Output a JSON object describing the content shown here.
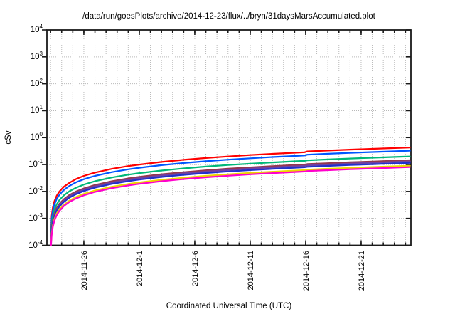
{
  "chart_data": {
    "type": "line",
    "title": "/data/run/goesPlots/archive/2014-12-23/flux/../bryn/31daysMarsAccumulated.plot",
    "xlabel": "Coordinated Universal Time (UTC)",
    "ylabel": "cSv",
    "y_scale": "log",
    "y_exp_range": [
      -4,
      4
    ],
    "y_tick_base": "10",
    "y_tick_exponents": [
      4,
      3,
      2,
      1,
      0,
      -1,
      -2,
      -3,
      -4
    ],
    "x_axis": {
      "day_zero_date": "2014-11-23",
      "range_days": [
        -0.33,
        32.49
      ],
      "minor_tick_step_days": 1,
      "major_ticks": [
        {
          "label": "2014-11-26",
          "day": 3
        },
        {
          "label": "2014-12-1",
          "day": 8
        },
        {
          "label": "2014-12-6",
          "day": 13
        },
        {
          "label": "2014-12-11",
          "day": 18
        },
        {
          "label": "2014-12-16",
          "day": 23
        },
        {
          "label": "2014-12-21",
          "day": 28
        }
      ]
    },
    "grid": {
      "vertical": "daily",
      "horizontal": "decades",
      "style": "dotted",
      "color": "#b9b9b9"
    },
    "style": {
      "axis_color": "#1a1a1a",
      "background": "#ffffff",
      "line_width": 2.2
    },
    "legend": "none",
    "series": [
      {
        "name": "red",
        "color": "#ff0000",
        "points": [
          [
            0.008,
            0.0001
          ],
          [
            0.1,
            0.00125
          ],
          [
            0.2,
            0.0025
          ],
          [
            0.35,
            0.0044
          ],
          [
            0.55,
            0.0069
          ],
          [
            0.8,
            0.01
          ],
          [
            1.2,
            0.015
          ],
          [
            1.7,
            0.021
          ],
          [
            2.3,
            0.029
          ],
          [
            3,
            0.038
          ],
          [
            4,
            0.05
          ],
          [
            5.5,
            0.069
          ],
          [
            7,
            0.088
          ],
          [
            8,
            0.1
          ],
          [
            10,
            0.125
          ],
          [
            12,
            0.15
          ],
          [
            14,
            0.175
          ],
          [
            16,
            0.2
          ],
          [
            18,
            0.225
          ],
          [
            20,
            0.25
          ],
          [
            22,
            0.275
          ],
          [
            22.9,
            0.286
          ],
          [
            23.15,
            0.307
          ],
          [
            25,
            0.331
          ],
          [
            27,
            0.358
          ],
          [
            29,
            0.384
          ],
          [
            31.5,
            0.417
          ],
          [
            32.4,
            0.429
          ]
        ]
      },
      {
        "name": "blue",
        "color": "#0057ff",
        "points": [
          [
            0.011,
            0.0001
          ],
          [
            0.1,
            0.00095
          ],
          [
            0.2,
            0.0019
          ],
          [
            0.35,
            0.0033
          ],
          [
            0.55,
            0.0052
          ],
          [
            0.8,
            0.0076
          ],
          [
            1.2,
            0.0114
          ],
          [
            1.7,
            0.0162
          ],
          [
            2.3,
            0.0219
          ],
          [
            3,
            0.0285
          ],
          [
            4,
            0.038
          ],
          [
            5.5,
            0.052
          ],
          [
            7,
            0.0665
          ],
          [
            8,
            0.076
          ],
          [
            10,
            0.095
          ],
          [
            12,
            0.114
          ],
          [
            14,
            0.133
          ],
          [
            16,
            0.152
          ],
          [
            18,
            0.171
          ],
          [
            20,
            0.19
          ],
          [
            22,
            0.209
          ],
          [
            22.9,
            0.218
          ],
          [
            23.15,
            0.233
          ],
          [
            25,
            0.252
          ],
          [
            27,
            0.272
          ],
          [
            29,
            0.292
          ],
          [
            31.5,
            0.317
          ],
          [
            32.4,
            0.326
          ]
        ]
      },
      {
        "name": "green",
        "color": "#00b878",
        "points": [
          [
            0.017,
            0.0001
          ],
          [
            0.1,
            0.0006
          ],
          [
            0.2,
            0.0012
          ],
          [
            0.35,
            0.0021
          ],
          [
            0.55,
            0.0033
          ],
          [
            0.8,
            0.0048
          ],
          [
            1.2,
            0.0072
          ],
          [
            1.7,
            0.0102
          ],
          [
            2.3,
            0.0138
          ],
          [
            3,
            0.018
          ],
          [
            4,
            0.024
          ],
          [
            5.5,
            0.033
          ],
          [
            7,
            0.042
          ],
          [
            8,
            0.048
          ],
          [
            10,
            0.06
          ],
          [
            12,
            0.072
          ],
          [
            14,
            0.084
          ],
          [
            16,
            0.096
          ],
          [
            18,
            0.108
          ],
          [
            20,
            0.12
          ],
          [
            22,
            0.132
          ],
          [
            22.9,
            0.137
          ],
          [
            23.15,
            0.143
          ],
          [
            25,
            0.155
          ],
          [
            27,
            0.167
          ],
          [
            29,
            0.179
          ],
          [
            31.5,
            0.195
          ],
          [
            32.4,
            0.2
          ]
        ]
      },
      {
        "name": "maroon",
        "color": "#93374f",
        "points": [
          [
            0.023,
            0.0001
          ],
          [
            0.1,
            0.00044
          ],
          [
            0.2,
            0.00087
          ],
          [
            0.35,
            0.0015
          ],
          [
            0.55,
            0.0024
          ],
          [
            0.8,
            0.0035
          ],
          [
            1.2,
            0.0052
          ],
          [
            1.7,
            0.0074
          ],
          [
            2.3,
            0.01
          ],
          [
            3,
            0.013
          ],
          [
            4,
            0.0174
          ],
          [
            5.5,
            0.0239
          ],
          [
            7,
            0.0305
          ],
          [
            8,
            0.0348
          ],
          [
            10,
            0.0435
          ],
          [
            12,
            0.052
          ],
          [
            14,
            0.061
          ],
          [
            16,
            0.07
          ],
          [
            18,
            0.078
          ],
          [
            20,
            0.087
          ],
          [
            22,
            0.096
          ],
          [
            22.9,
            0.0996
          ],
          [
            23.15,
            0.104
          ],
          [
            25,
            0.112
          ],
          [
            27,
            0.121
          ],
          [
            29,
            0.13
          ],
          [
            31.5,
            0.141
          ],
          [
            32.4,
            0.145
          ]
        ]
      },
      {
        "name": "purple",
        "color": "#7040a0",
        "points": [
          [
            0.026,
            0.0001
          ],
          [
            0.1,
            0.00039
          ],
          [
            0.2,
            0.00078
          ],
          [
            0.35,
            0.0014
          ],
          [
            0.55,
            0.0021
          ],
          [
            0.8,
            0.0031
          ],
          [
            1.2,
            0.0047
          ],
          [
            1.7,
            0.0066
          ],
          [
            2.3,
            0.009
          ],
          [
            3,
            0.0117
          ],
          [
            4,
            0.0156
          ],
          [
            5.5,
            0.0215
          ],
          [
            7,
            0.0273
          ],
          [
            8,
            0.0312
          ],
          [
            10,
            0.039
          ],
          [
            12,
            0.0468
          ],
          [
            14,
            0.0546
          ],
          [
            16,
            0.0624
          ],
          [
            18,
            0.0702
          ],
          [
            20,
            0.078
          ],
          [
            22,
            0.0858
          ],
          [
            22.9,
            0.0893
          ],
          [
            23.15,
            0.093
          ],
          [
            25,
            0.1
          ],
          [
            27,
            0.108
          ],
          [
            29,
            0.117
          ],
          [
            31.5,
            0.127
          ],
          [
            32.4,
            0.131
          ]
        ]
      },
      {
        "name": "navy",
        "color": "#2030cc",
        "points": [
          [
            0.029,
            0.0001
          ],
          [
            0.1,
            0.00035
          ],
          [
            0.2,
            0.00069
          ],
          [
            0.35,
            0.0012
          ],
          [
            0.55,
            0.0019
          ],
          [
            0.8,
            0.0028
          ],
          [
            1.2,
            0.0041
          ],
          [
            1.7,
            0.0059
          ],
          [
            2.3,
            0.0079
          ],
          [
            3,
            0.0104
          ],
          [
            4,
            0.0138
          ],
          [
            5.5,
            0.019
          ],
          [
            7,
            0.0242
          ],
          [
            8,
            0.0276
          ],
          [
            10,
            0.0345
          ],
          [
            12,
            0.0414
          ],
          [
            14,
            0.0483
          ],
          [
            16,
            0.0552
          ],
          [
            18,
            0.0621
          ],
          [
            20,
            0.069
          ],
          [
            22,
            0.0759
          ],
          [
            22.9,
            0.079
          ],
          [
            23.15,
            0.0823
          ],
          [
            25,
            0.0889
          ],
          [
            27,
            0.096
          ],
          [
            29,
            0.103
          ],
          [
            31.5,
            0.112
          ],
          [
            32.4,
            0.115
          ]
        ]
      },
      {
        "name": "yellow",
        "color": "#ecd500",
        "points": [
          [
            0.037,
            0.0001
          ],
          [
            0.1,
            0.00027
          ],
          [
            0.2,
            0.00054
          ],
          [
            0.35,
            0.00095
          ],
          [
            0.55,
            0.0015
          ],
          [
            0.8,
            0.0022
          ],
          [
            1.2,
            0.0032
          ],
          [
            1.7,
            0.0046
          ],
          [
            2.3,
            0.0062
          ],
          [
            3,
            0.0081
          ],
          [
            4,
            0.0108
          ],
          [
            5.5,
            0.0149
          ],
          [
            7,
            0.0189
          ],
          [
            8,
            0.0216
          ],
          [
            10,
            0.027
          ],
          [
            12,
            0.0324
          ],
          [
            14,
            0.0378
          ],
          [
            16,
            0.0432
          ],
          [
            18,
            0.0486
          ],
          [
            20,
            0.054
          ],
          [
            22,
            0.0594
          ],
          [
            22.9,
            0.0618
          ],
          [
            23.15,
            0.0644
          ],
          [
            25,
            0.0695
          ],
          [
            27,
            0.0751
          ],
          [
            29,
            0.0806
          ],
          [
            31.5,
            0.0876
          ],
          [
            32.4,
            0.0901
          ]
        ]
      },
      {
        "name": "magenta",
        "color": "#ff00cc",
        "points": [
          [
            0.042,
            0.0001
          ],
          [
            0.1,
            0.00024
          ],
          [
            0.2,
            0.00048
          ],
          [
            0.35,
            0.00084
          ],
          [
            0.55,
            0.0013
          ],
          [
            0.8,
            0.0019
          ],
          [
            1.2,
            0.0029
          ],
          [
            1.7,
            0.0041
          ],
          [
            2.3,
            0.0055
          ],
          [
            3,
            0.0072
          ],
          [
            4,
            0.0096
          ],
          [
            5.5,
            0.0132
          ],
          [
            7,
            0.0168
          ],
          [
            8,
            0.0192
          ],
          [
            10,
            0.024
          ],
          [
            12,
            0.0288
          ],
          [
            14,
            0.0336
          ],
          [
            16,
            0.0384
          ],
          [
            18,
            0.0432
          ],
          [
            20,
            0.048
          ],
          [
            22,
            0.0528
          ],
          [
            22.9,
            0.055
          ],
          [
            23.15,
            0.0572
          ],
          [
            25,
            0.0618
          ],
          [
            27,
            0.0666
          ],
          [
            29,
            0.0715
          ],
          [
            31.5,
            0.0777
          ],
          [
            32.4,
            0.08
          ]
        ]
      }
    ]
  }
}
